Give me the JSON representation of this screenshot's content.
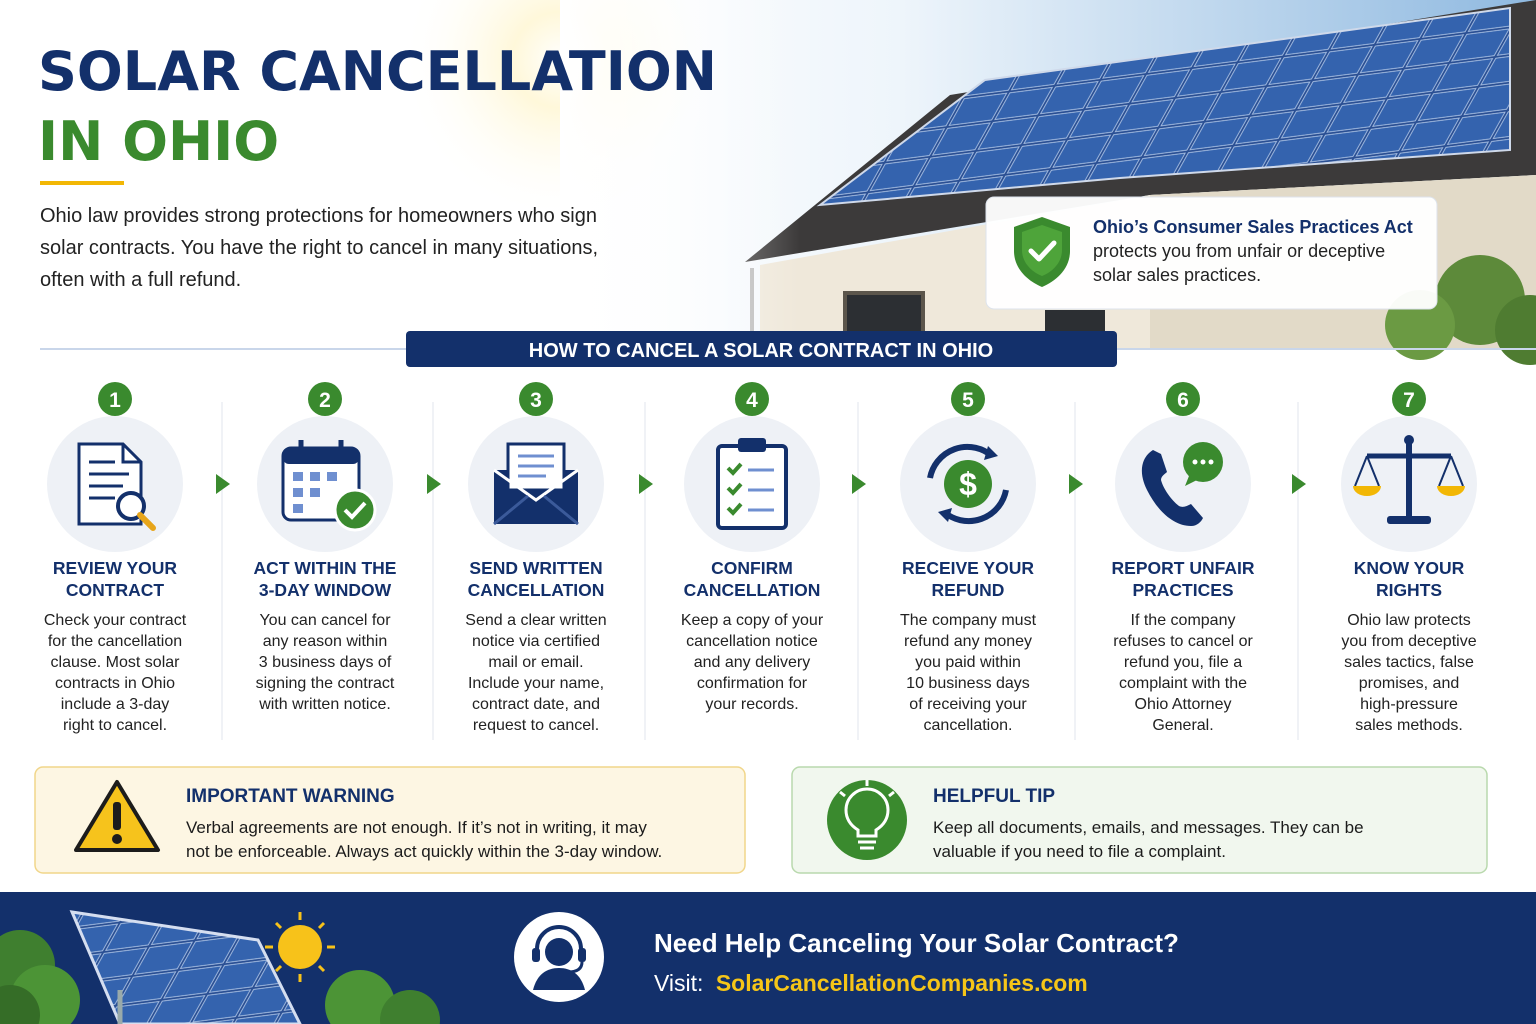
{
  "header": {
    "title_line1": "SOLAR CANCELLATION",
    "title_line2": "IN OHIO",
    "intro": [
      "Ohio law provides strong protections for homeowners who sign",
      "solar contracts. You have the right to cancel in many situations,",
      "often with a full refund."
    ]
  },
  "callout": {
    "title": "Ohio’s Consumer Sales Practices Act",
    "text": [
      "protects you from unfair or deceptive",
      "solar sales practices."
    ]
  },
  "steps_heading": "HOW TO CANCEL A SOLAR CONTRACT IN OHIO",
  "steps": [
    {
      "number": 1,
      "title": [
        "REVIEW YOUR",
        "CONTRACT"
      ],
      "text": [
        "Check your contract",
        "for the cancellation",
        "clause.  Most solar",
        "contracts in Ohio",
        "include a 3-day",
        "right to cancel."
      ]
    },
    {
      "number": 2,
      "title": [
        "ACT WITHIN THE",
        "3-DAY WINDOW"
      ],
      "text": [
        "You can cancel for",
        "any reason within",
        "3 business days of",
        "signing the contract",
        "with written notice."
      ]
    },
    {
      "number": 3,
      "title": [
        "SEND WRITTEN",
        "CANCELLATION"
      ],
      "text": [
        "Send a clear written",
        "notice via certified",
        "mail or email.",
        "Include your name,",
        "contract date, and",
        "request to cancel."
      ]
    },
    {
      "number": 4,
      "title": [
        "CONFIRM",
        "CANCELLATION"
      ],
      "text": [
        "Keep a copy of your",
        "cancellation notice",
        "and any delivery",
        "confirmation for",
        "your records."
      ]
    },
    {
      "number": 5,
      "title": [
        "RECEIVE YOUR",
        "REFUND"
      ],
      "text": [
        "The company must",
        "refund any money",
        "you paid within",
        "10 business days",
        "of receiving your",
        "cancellation."
      ]
    },
    {
      "number": 6,
      "title": [
        "REPORT UNFAIR",
        "PRACTICES"
      ],
      "text": [
        "If the company",
        "refuses to cancel or",
        "refund you, file a",
        "complaint with the",
        "Ohio Attorney",
        "General."
      ]
    },
    {
      "number": 7,
      "title": [
        "KNOW YOUR",
        "RIGHTS"
      ],
      "text": [
        "Ohio law protects",
        "you from deceptive",
        "sales tactics, false",
        "promises, and",
        "high-pressure",
        "sales methods."
      ]
    }
  ],
  "warning": {
    "title": "IMPORTANT WARNING",
    "text": [
      "Verbal agreements are not enough. If it’s not in writing, it may",
      "not be enforceable. Always act quickly within the 3-day window."
    ]
  },
  "tip": {
    "title": "HELPFUL TIP",
    "text": [
      "Keep all documents, emails, and messages. They can be",
      "valuable if you need to file a complaint."
    ]
  },
  "footer": {
    "heading": "Need Help Canceling Your Solar Contract?",
    "visit_label": "Visit:",
    "url": "SolarCancellationCompanies.com"
  }
}
